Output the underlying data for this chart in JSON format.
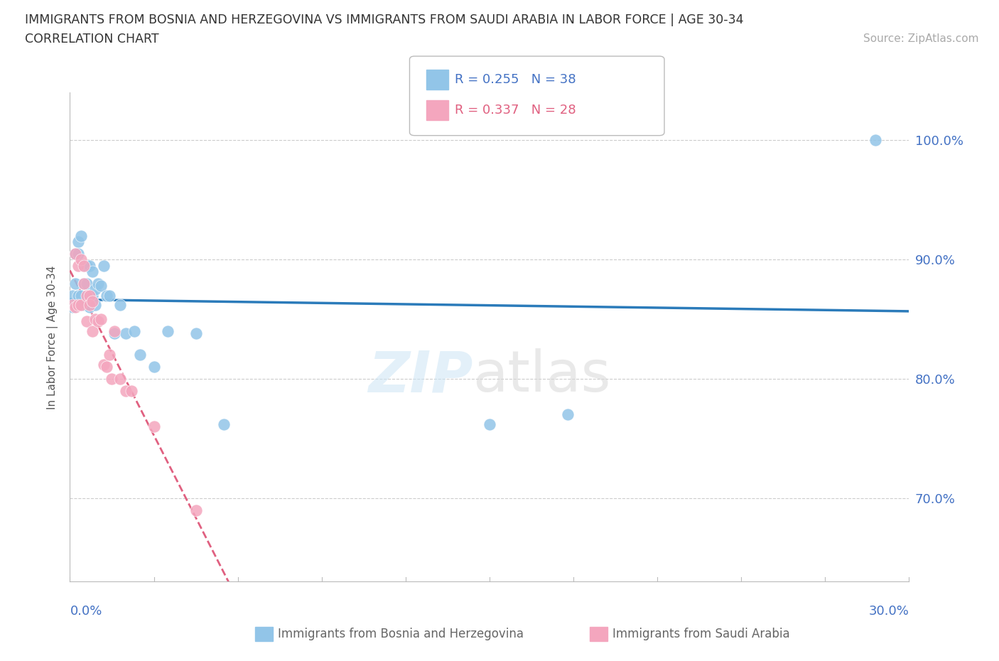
{
  "title_line1": "IMMIGRANTS FROM BOSNIA AND HERZEGOVINA VS IMMIGRANTS FROM SAUDI ARABIA IN LABOR FORCE | AGE 30-34",
  "title_line2": "CORRELATION CHART",
  "source_text": "Source: ZipAtlas.com",
  "ylabel": "In Labor Force | Age 30-34",
  "r_bosnia": 0.255,
  "n_bosnia": 38,
  "r_saudi": 0.337,
  "n_saudi": 28,
  "color_bosnia": "#92c5e8",
  "color_saudi": "#f4a6be",
  "color_trendline_bosnia": "#2b7bba",
  "color_trendline_saudi": "#e06080",
  "xmin": 0.0,
  "xmax": 0.3,
  "ymin": 0.63,
  "ymax": 1.04,
  "ytick_positions": [
    0.7,
    0.8,
    0.9,
    1.0
  ],
  "ytick_labels": [
    "70.0%",
    "80.0%",
    "90.0%",
    "100.0%"
  ],
  "bosnia_x": [
    0.001,
    0.001,
    0.002,
    0.002,
    0.003,
    0.003,
    0.003,
    0.004,
    0.004,
    0.005,
    0.005,
    0.005,
    0.006,
    0.006,
    0.006,
    0.007,
    0.007,
    0.008,
    0.008,
    0.009,
    0.009,
    0.01,
    0.011,
    0.012,
    0.013,
    0.014,
    0.016,
    0.018,
    0.02,
    0.023,
    0.025,
    0.03,
    0.035,
    0.045,
    0.055,
    0.15,
    0.178,
    0.288
  ],
  "bosnia_y": [
    0.87,
    0.86,
    0.905,
    0.88,
    0.915,
    0.905,
    0.87,
    0.92,
    0.87,
    0.895,
    0.88,
    0.862,
    0.895,
    0.88,
    0.862,
    0.895,
    0.86,
    0.89,
    0.87,
    0.875,
    0.862,
    0.88,
    0.878,
    0.895,
    0.87,
    0.87,
    0.838,
    0.862,
    0.838,
    0.84,
    0.82,
    0.81,
    0.84,
    0.838,
    0.762,
    0.762,
    0.77,
    1.0
  ],
  "saudi_x": [
    0.001,
    0.002,
    0.002,
    0.003,
    0.003,
    0.004,
    0.004,
    0.005,
    0.005,
    0.006,
    0.006,
    0.007,
    0.007,
    0.008,
    0.008,
    0.009,
    0.01,
    0.011,
    0.012,
    0.013,
    0.014,
    0.015,
    0.016,
    0.018,
    0.02,
    0.022,
    0.03,
    0.045
  ],
  "saudi_y": [
    0.862,
    0.905,
    0.86,
    0.895,
    0.862,
    0.9,
    0.862,
    0.895,
    0.88,
    0.87,
    0.848,
    0.87,
    0.862,
    0.865,
    0.84,
    0.85,
    0.848,
    0.85,
    0.812,
    0.81,
    0.82,
    0.8,
    0.84,
    0.8,
    0.79,
    0.79,
    0.76,
    0.69
  ]
}
